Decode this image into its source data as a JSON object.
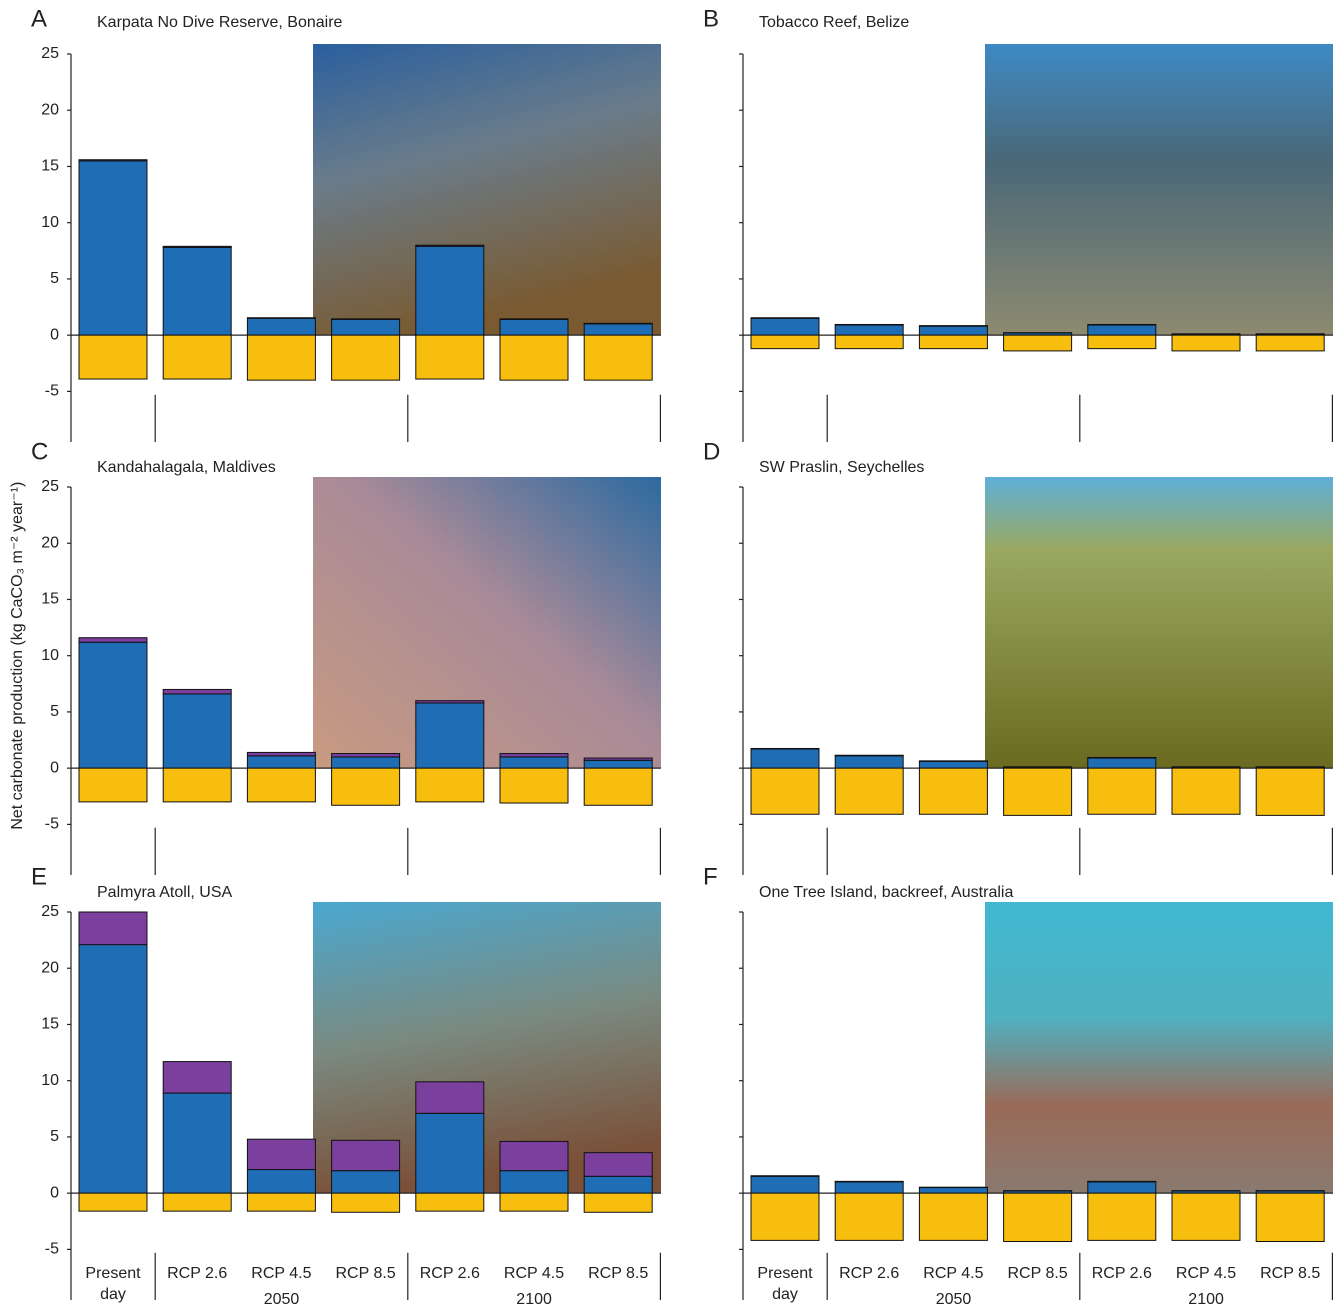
{
  "chart_data": [
    {
      "type": "bar",
      "panel": "A",
      "title": "Karpata No Dive Reserve, Bonaire",
      "categories": [
        null,
        null,
        null,
        null,
        null,
        null,
        null
      ],
      "groups": [
        null,
        null
      ],
      "series": [
        {
          "color": "#1f6db5",
          "values": [
            15.5,
            7.8,
            1.5,
            1.4,
            7.9,
            1.4,
            1.0
          ]
        },
        {
          "color": "#7b3f9e",
          "values": [
            0.1,
            0.1,
            0.05,
            0.05,
            0.1,
            0.05,
            0.05
          ]
        },
        {
          "color": "#f7be0e",
          "values": [
            -3.9,
            -3.9,
            -4.0,
            -4.0,
            -3.9,
            -4.0,
            -4.0
          ]
        }
      ],
      "ylim": [
        -9.5,
        25
      ],
      "yticks": [
        25,
        20,
        15,
        10,
        5,
        0,
        -5
      ]
    },
    {
      "type": "bar",
      "panel": "B",
      "title": "Tobacco Reef, Belize",
      "categories": [
        null,
        null,
        null,
        null,
        null,
        null,
        null
      ],
      "groups": [
        null,
        null
      ],
      "series": [
        {
          "color": "#1f6db5",
          "values": [
            1.5,
            0.9,
            0.8,
            0.2,
            0.9,
            0.1,
            0.1
          ]
        },
        {
          "color": "#7b3f9e",
          "values": [
            0.05,
            0.05,
            0.05,
            0.02,
            0.05,
            0.02,
            0.02
          ]
        },
        {
          "color": "#f7be0e",
          "values": [
            -1.2,
            -1.2,
            -1.2,
            -1.4,
            -1.2,
            -1.4,
            -1.4
          ]
        }
      ],
      "ylim": [
        -9.5,
        25
      ],
      "yticks": [
        {
          "value": 25,
          "label": null
        },
        {
          "value": 20,
          "label": null
        },
        {
          "value": 15,
          "label": null
        },
        {
          "value": 10,
          "label": null
        },
        {
          "value": 5,
          "label": null
        },
        {
          "value": 0,
          "label": null
        },
        {
          "value": -5,
          "label": null
        }
      ]
    },
    {
      "type": "bar",
      "panel": "C",
      "title": "Kandahalagala, Maldives",
      "ylabel": "Net carbonate production (kg CaCO₃ m⁻² year⁻¹)",
      "categories": [
        null,
        null,
        null,
        null,
        null,
        null,
        null
      ],
      "groups": [
        null,
        null
      ],
      "series": [
        {
          "color": "#1f6db5",
          "values": [
            11.2,
            6.6,
            1.1,
            1.0,
            5.8,
            1.0,
            0.7
          ]
        },
        {
          "color": "#7b3f9e",
          "values": [
            0.4,
            0.4,
            0.3,
            0.3,
            0.2,
            0.3,
            0.2
          ]
        },
        {
          "color": "#f7be0e",
          "values": [
            -3.0,
            -3.0,
            -3.0,
            -3.3,
            -3.0,
            -3.1,
            -3.3
          ]
        }
      ],
      "ylim": [
        -9.5,
        25
      ],
      "yticks": [
        25,
        20,
        15,
        10,
        5,
        0,
        -5
      ]
    },
    {
      "type": "bar",
      "panel": "D",
      "title": "SW Praslin, Seychelles",
      "categories": [
        null,
        null,
        null,
        null,
        null,
        null,
        null
      ],
      "groups": [
        null,
        null
      ],
      "series": [
        {
          "color": "#1f6db5",
          "values": [
            1.7,
            1.1,
            0.6,
            0.1,
            0.9,
            0.1,
            0.1
          ]
        },
        {
          "color": "#7b3f9e",
          "values": [
            0.05,
            0.05,
            0.05,
            0.02,
            0.05,
            0.02,
            0.02
          ]
        },
        {
          "color": "#f7be0e",
          "values": [
            -4.1,
            -4.1,
            -4.1,
            -4.2,
            -4.1,
            -4.1,
            -4.2
          ]
        }
      ],
      "ylim": [
        -9.5,
        25
      ],
      "yticks": [
        {
          "value": 25,
          "label": null
        },
        {
          "value": 20,
          "label": null
        },
        {
          "value": 15,
          "label": null
        },
        {
          "value": 10,
          "label": null
        },
        {
          "value": 5,
          "label": null
        },
        {
          "value": 0,
          "label": null
        },
        {
          "value": -5,
          "label": null
        }
      ]
    },
    {
      "type": "bar",
      "panel": "E",
      "title": "Palmyra Atoll, USA",
      "categories": [
        "Present day",
        "RCP 2.6",
        "RCP 4.5",
        "RCP 8.5",
        "RCP 2.6",
        "RCP 4.5",
        "RCP 8.5"
      ],
      "groups": [
        "2050",
        "2100"
      ],
      "series": [
        {
          "color": "#1f6db5",
          "values": [
            22.1,
            8.9,
            2.1,
            2.0,
            7.1,
            2.0,
            1.5
          ]
        },
        {
          "color": "#7b3f9e",
          "values": [
            2.9,
            2.8,
            2.7,
            2.7,
            2.8,
            2.6,
            2.1
          ]
        },
        {
          "color": "#f7be0e",
          "values": [
            -1.6,
            -1.6,
            -1.6,
            -1.7,
            -1.6,
            -1.6,
            -1.7
          ]
        }
      ],
      "ylim": [
        -9.5,
        25
      ],
      "yticks": [
        25,
        20,
        15,
        10,
        5,
        0,
        -5
      ]
    },
    {
      "type": "bar",
      "panel": "F",
      "title": "One Tree Island, backreef, Australia",
      "categories": [
        "Present day",
        "RCP 2.6",
        "RCP 4.5",
        "RCP 8.5",
        "RCP 2.6",
        "RCP 4.5",
        "RCP 8.5"
      ],
      "groups": [
        "2050",
        "2100"
      ],
      "series": [
        {
          "color": "#1f6db5",
          "values": [
            1.5,
            1.0,
            0.5,
            0.2,
            1.0,
            0.2,
            0.2
          ]
        },
        {
          "color": "#7b3f9e",
          "values": [
            0.05,
            0.05,
            0.03,
            0.02,
            0.05,
            0.02,
            0.02
          ]
        },
        {
          "color": "#f7be0e",
          "values": [
            -4.2,
            -4.2,
            -4.2,
            -4.3,
            -4.2,
            -4.2,
            -4.3
          ]
        }
      ],
      "ylim": [
        -9.5,
        25
      ],
      "yticks": [
        {
          "value": 25,
          "label": null
        },
        {
          "value": 20,
          "label": null
        },
        {
          "value": 15,
          "label": null
        },
        {
          "value": 10,
          "label": null
        },
        {
          "value": 5,
          "label": null
        },
        {
          "value": 0,
          "label": null
        },
        {
          "value": -5,
          "label": null
        }
      ]
    }
  ]
}
